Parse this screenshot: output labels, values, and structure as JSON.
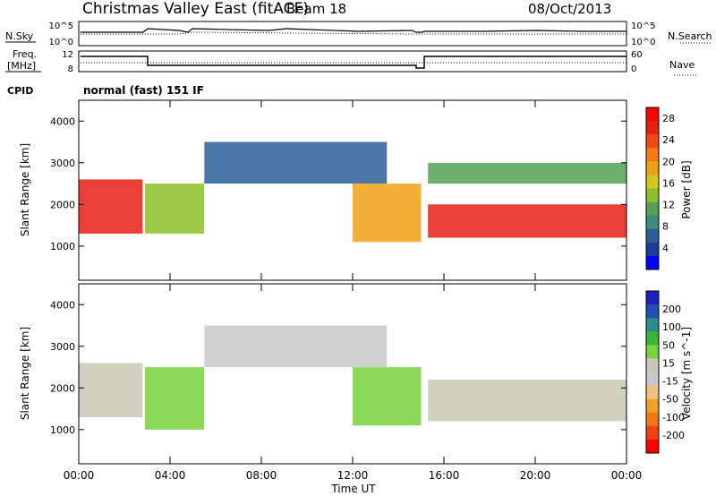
{
  "header": {
    "title": "Christmas Valley East (fitACF)",
    "beam": "Beam 18",
    "date": "08/Oct/2013",
    "cpid_label": "CPID",
    "cpid_value": "normal (fast) 151 IF"
  },
  "strip_labels": {
    "nsky": "N.Sky",
    "nsearch": "N.Search",
    "freq_line1": "Freq.",
    "freq_line2": "[MHz]",
    "nave": "Nave"
  },
  "strip_ticks": {
    "noise_left": [
      "10^5",
      "10^0"
    ],
    "noise_right": [
      "10^5",
      "10^0"
    ],
    "freq_left": [
      "12",
      "8"
    ],
    "freq_right": [
      "60",
      "0"
    ]
  },
  "colors": {
    "power": [
      "#0000ff",
      "#1e3c9a",
      "#2a5f96",
      "#3d8a80",
      "#55a055",
      "#8cc028",
      "#d2c81e",
      "#f0a014",
      "#f57814",
      "#f04a14",
      "#e81e14",
      "#ff0000"
    ],
    "velocity": [
      "#2020c0",
      "#2050b0",
      "#2a8c8c",
      "#3cb43c",
      "#78d23c",
      "#c8c8b4",
      "#c8c8c8",
      "#f0c080",
      "#f0a030",
      "#f07814",
      "#f04014",
      "#ff0000"
    ],
    "axis": "#000000"
  },
  "chart_data": [
    {
      "type": "heatmap",
      "title": "",
      "xlabel": "Time UT",
      "ylabel": "Slant Range [km]",
      "x_ticks": [
        "00:00",
        "04:00",
        "08:00",
        "12:00",
        "16:00",
        "20:00",
        "00:00"
      ],
      "y_ticks": [
        "1000",
        "2000",
        "3000",
        "4000"
      ],
      "xlim_hours": [
        0,
        24
      ],
      "ylim_km": [
        180,
        4500
      ],
      "colorbar": {
        "label": "Power [dB]",
        "ticks": [
          "4",
          "8",
          "12",
          "16",
          "20",
          "24",
          "28"
        ],
        "range": [
          0,
          30
        ]
      },
      "bands": [
        {
          "t": [
            0.0,
            2.8
          ],
          "range_km": [
            1300,
            2600
          ],
          "value": 26
        },
        {
          "t": [
            2.9,
            5.5
          ],
          "range_km": [
            1300,
            2500
          ],
          "value": 14
        },
        {
          "t": [
            5.5,
            13.5
          ],
          "range_km": [
            2500,
            3500
          ],
          "value": 5
        },
        {
          "t": [
            12.0,
            15.0
          ],
          "range_km": [
            1100,
            2500
          ],
          "value": 18
        },
        {
          "t": [
            15.3,
            24.0
          ],
          "range_km": [
            1200,
            2000
          ],
          "value": 27
        },
        {
          "t": [
            15.3,
            24.0
          ],
          "range_km": [
            2500,
            3000
          ],
          "value": 12
        }
      ]
    },
    {
      "type": "heatmap",
      "title": "",
      "xlabel": "Time UT",
      "ylabel": "Slant Range [km]",
      "x_ticks": [
        "00:00",
        "04:00",
        "08:00",
        "12:00",
        "16:00",
        "20:00",
        "00:00"
      ],
      "y_ticks": [
        "1000",
        "2000",
        "3000",
        "4000"
      ],
      "xlim_hours": [
        0,
        24
      ],
      "ylim_km": [
        180,
        4500
      ],
      "colorbar": {
        "label": "Velocity [m s^-1]",
        "ticks": [
          "200",
          "100",
          "50",
          "15",
          "-15",
          "-50",
          "-100",
          "-200"
        ],
        "range": [
          -250,
          250
        ]
      },
      "bands": [
        {
          "t": [
            0.0,
            2.8
          ],
          "range_km": [
            1300,
            2600
          ],
          "value": 0
        },
        {
          "t": [
            2.9,
            5.5
          ],
          "range_km": [
            1000,
            2500
          ],
          "value": 60
        },
        {
          "t": [
            5.5,
            13.5
          ],
          "range_km": [
            2500,
            3500
          ],
          "value": -30
        },
        {
          "t": [
            12.0,
            15.0
          ],
          "range_km": [
            1100,
            2500
          ],
          "value": 55
        },
        {
          "t": [
            15.3,
            24.0
          ],
          "range_km": [
            1200,
            2200
          ],
          "value": 0
        }
      ]
    }
  ]
}
